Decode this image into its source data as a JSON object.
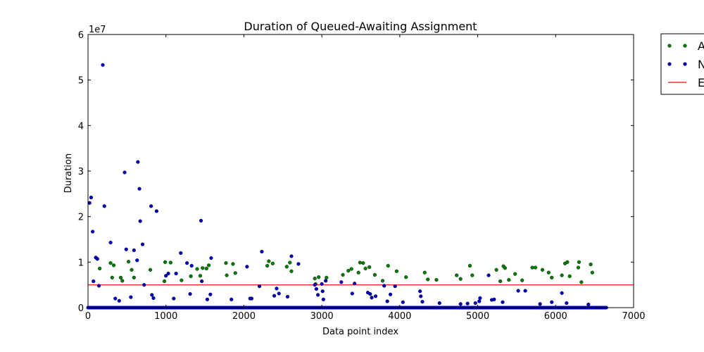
{
  "chart_data": {
    "type": "scatter",
    "title": "Duration of Queued-Awaiting Assignment",
    "xlabel": "Data point index",
    "ylabel": "Duration",
    "xlim": [
      0,
      7000
    ],
    "ylim": [
      0,
      60000000
    ],
    "y_multiplier_label": "1e7",
    "x_ticks": [
      0,
      1000,
      2000,
      3000,
      4000,
      5000,
      6000,
      7000
    ],
    "x_tick_labels": [
      "0",
      "1000",
      "2000",
      "3000",
      "4000",
      "5000",
      "6000",
      "7000"
    ],
    "y_ticks": [
      0,
      10000000,
      20000000,
      30000000,
      40000000,
      50000000,
      60000000
    ],
    "y_tick_labels": [
      "0",
      "1",
      "2",
      "3",
      "4",
      "5",
      "6"
    ],
    "grid": false,
    "legend_position": "outside-top-right",
    "legend_entries": [
      {
        "label": "A",
        "color": "#008000",
        "kind": "marker"
      },
      {
        "label": "N",
        "color": "#0000bf",
        "kind": "marker"
      },
      {
        "label": "E",
        "color": "#ff0000",
        "kind": "line"
      }
    ],
    "threshold": {
      "value": 5000000,
      "color": "#ff0000"
    },
    "baseline_band": {
      "x_start": 0,
      "x_end": 6650,
      "y": 0
    },
    "series": [
      {
        "color": "#008000",
        "points": [
          [
            150,
            8600000
          ],
          [
            290,
            9800000
          ],
          [
            310,
            6600000
          ],
          [
            330,
            9300000
          ],
          [
            420,
            6600000
          ],
          [
            440,
            5900000
          ],
          [
            520,
            10100000
          ],
          [
            560,
            8300000
          ],
          [
            590,
            6600000
          ],
          [
            800,
            8300000
          ],
          [
            980,
            5800000
          ],
          [
            990,
            10000000
          ],
          [
            1060,
            9900000
          ],
          [
            1200,
            6000000
          ],
          [
            1320,
            6900000
          ],
          [
            1400,
            8500000
          ],
          [
            1440,
            7000000
          ],
          [
            1470,
            8700000
          ],
          [
            1520,
            8600000
          ],
          [
            1550,
            9300000
          ],
          [
            1770,
            9800000
          ],
          [
            1780,
            7100000
          ],
          [
            1860,
            9600000
          ],
          [
            1890,
            7600000
          ],
          [
            2300,
            9200000
          ],
          [
            2320,
            10200000
          ],
          [
            2370,
            9700000
          ],
          [
            2550,
            9000000
          ],
          [
            2590,
            9900000
          ],
          [
            2610,
            8000000
          ],
          [
            2910,
            6400000
          ],
          [
            2920,
            5200000
          ],
          [
            2960,
            6700000
          ],
          [
            3060,
            6600000
          ],
          [
            3270,
            7200000
          ],
          [
            3340,
            8100000
          ],
          [
            3380,
            8500000
          ],
          [
            3470,
            7700000
          ],
          [
            3490,
            9900000
          ],
          [
            3530,
            9800000
          ],
          [
            3560,
            8600000
          ],
          [
            3610,
            8900000
          ],
          [
            3680,
            7200000
          ],
          [
            3780,
            5900000
          ],
          [
            3850,
            9200000
          ],
          [
            3960,
            8000000
          ],
          [
            4080,
            6700000
          ],
          [
            4320,
            7700000
          ],
          [
            4360,
            6200000
          ],
          [
            4470,
            6100000
          ],
          [
            4730,
            7100000
          ],
          [
            4780,
            6300000
          ],
          [
            4900,
            9200000
          ],
          [
            4930,
            7100000
          ],
          [
            5240,
            8300000
          ],
          [
            5290,
            5800000
          ],
          [
            5330,
            9100000
          ],
          [
            5350,
            8700000
          ],
          [
            5400,
            6100000
          ],
          [
            5480,
            7400000
          ],
          [
            5570,
            6000000
          ],
          [
            5700,
            8800000
          ],
          [
            5740,
            8800000
          ],
          [
            5830,
            8300000
          ],
          [
            5910,
            7700000
          ],
          [
            5950,
            6600000
          ],
          [
            6080,
            7100000
          ],
          [
            6120,
            9700000
          ],
          [
            6150,
            10000000
          ],
          [
            6180,
            6900000
          ],
          [
            6290,
            8800000
          ],
          [
            6300,
            10000000
          ],
          [
            6330,
            5600000
          ],
          [
            6450,
            9500000
          ],
          [
            6470,
            7700000
          ]
        ]
      },
      {
        "color": "#0000bf",
        "points": [
          [
            20,
            23000000
          ],
          [
            40,
            24200000
          ],
          [
            60,
            16700000
          ],
          [
            70,
            5800000
          ],
          [
            100,
            11000000
          ],
          [
            120,
            10700000
          ],
          [
            140,
            4800000
          ],
          [
            190,
            53300000
          ],
          [
            210,
            22300000
          ],
          [
            290,
            14300000
          ],
          [
            350,
            2000000
          ],
          [
            400,
            1500000
          ],
          [
            470,
            29700000
          ],
          [
            490,
            12800000
          ],
          [
            550,
            2300000
          ],
          [
            590,
            12600000
          ],
          [
            630,
            10400000
          ],
          [
            640,
            32000000
          ],
          [
            660,
            26100000
          ],
          [
            670,
            19000000
          ],
          [
            700,
            13900000
          ],
          [
            720,
            5000000
          ],
          [
            810,
            22300000
          ],
          [
            820,
            2800000
          ],
          [
            840,
            2100000
          ],
          [
            880,
            21200000
          ],
          [
            1000,
            7000000
          ],
          [
            1030,
            7500000
          ],
          [
            1100,
            2000000
          ],
          [
            1130,
            7500000
          ],
          [
            1190,
            12000000
          ],
          [
            1270,
            9800000
          ],
          [
            1310,
            3000000
          ],
          [
            1330,
            9200000
          ],
          [
            1450,
            19100000
          ],
          [
            1460,
            5800000
          ],
          [
            1530,
            1800000
          ],
          [
            1570,
            2900000
          ],
          [
            1580,
            10900000
          ],
          [
            1840,
            1800000
          ],
          [
            2040,
            9000000
          ],
          [
            2080,
            2000000
          ],
          [
            2100,
            2000000
          ],
          [
            2200,
            4700000
          ],
          [
            2230,
            12300000
          ],
          [
            2390,
            2600000
          ],
          [
            2420,
            4200000
          ],
          [
            2450,
            3100000
          ],
          [
            2560,
            2400000
          ],
          [
            2610,
            11300000
          ],
          [
            2700,
            9600000
          ],
          [
            2910,
            5000000
          ],
          [
            2930,
            4100000
          ],
          [
            2950,
            2800000
          ],
          [
            3000,
            5200000
          ],
          [
            3010,
            3600000
          ],
          [
            3020,
            1800000
          ],
          [
            3050,
            5900000
          ],
          [
            3250,
            5600000
          ],
          [
            3390,
            3100000
          ],
          [
            3420,
            5300000
          ],
          [
            3590,
            3300000
          ],
          [
            3620,
            3000000
          ],
          [
            3640,
            2200000
          ],
          [
            3690,
            2500000
          ],
          [
            3800,
            4800000
          ],
          [
            3840,
            1400000
          ],
          [
            3880,
            2900000
          ],
          [
            3940,
            4700000
          ],
          [
            4040,
            1200000
          ],
          [
            4260,
            3600000
          ],
          [
            4270,
            2500000
          ],
          [
            4290,
            1300000
          ],
          [
            4510,
            1000000
          ],
          [
            4780,
            800000
          ],
          [
            4870,
            900000
          ],
          [
            4970,
            1000000
          ],
          [
            5020,
            1400000
          ],
          [
            5030,
            2100000
          ],
          [
            5140,
            7100000
          ],
          [
            5180,
            1700000
          ],
          [
            5210,
            1800000
          ],
          [
            5320,
            1200000
          ],
          [
            5520,
            3700000
          ],
          [
            5610,
            3700000
          ],
          [
            5800,
            800000
          ],
          [
            5950,
            1200000
          ],
          [
            6080,
            3200000
          ],
          [
            6140,
            1000000
          ],
          [
            6420,
            700000
          ]
        ]
      }
    ]
  }
}
